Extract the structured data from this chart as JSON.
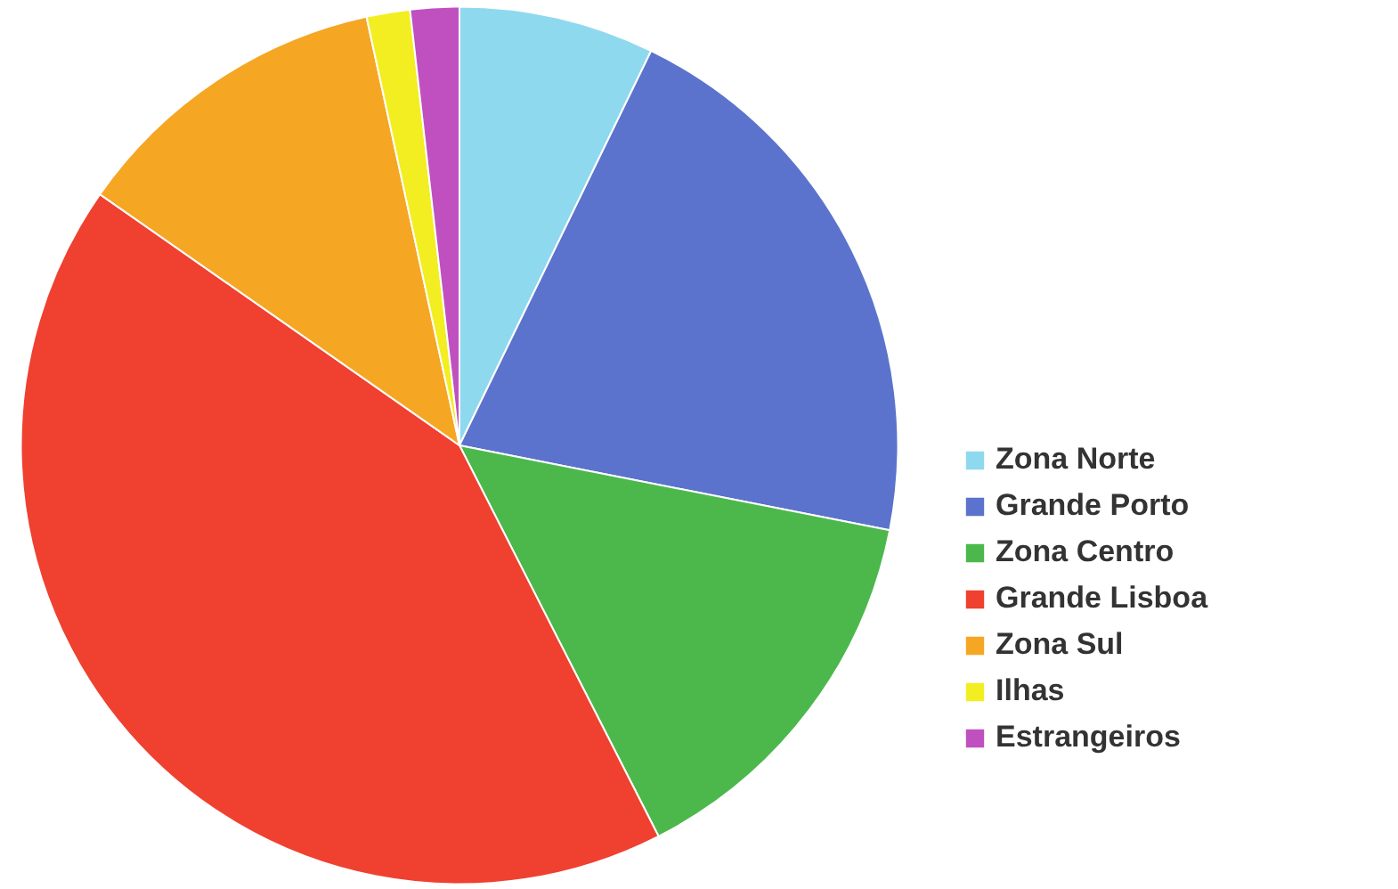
{
  "chart_data": {
    "type": "pie",
    "categories": [
      "Zona Norte",
      "Grande Porto",
      "Zona Centro",
      "Grande Lisboa",
      "Zona Sul",
      "Ilhas",
      "Estrangeiros"
    ],
    "values": [
      7.2,
      20.9,
      14.4,
      42.2,
      11.9,
      1.6,
      1.8
    ],
    "colors": [
      "#8fd9ef",
      "#5b73cc",
      "#4cb84c",
      "#f04030",
      "#f5a623",
      "#f2ee22",
      "#c050c0"
    ],
    "legend": "right"
  }
}
